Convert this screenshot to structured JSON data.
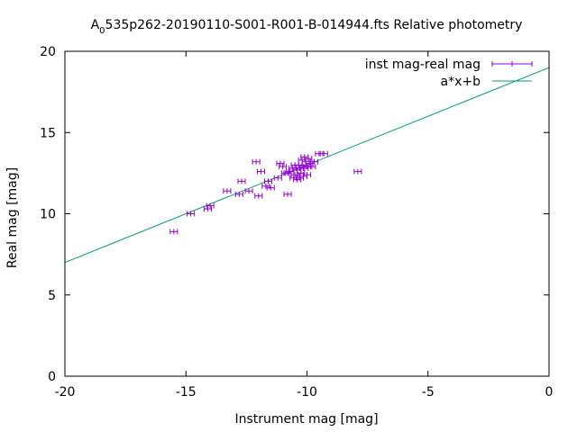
{
  "chart_data": {
    "type": "scatter",
    "title_main": "A",
    "title_sub": "0",
    "title_rest": "535p262-20190110-S001-R001-B-014944.fts Relative photometry",
    "xlabel": "Instrument mag [mag]",
    "ylabel": "Real mag [mag]",
    "xlim": [
      -20,
      0
    ],
    "ylim": [
      0,
      20
    ],
    "xticks": [
      -20,
      -15,
      -10,
      -5,
      0
    ],
    "xtick_labels": [
      "-20",
      "-15",
      "-10",
      "-5",
      "0"
    ],
    "yticks": [
      0,
      5,
      10,
      15,
      20
    ],
    "ytick_labels": [
      "0",
      "5",
      "10",
      "15",
      "20"
    ],
    "grid": false,
    "legend_position": "top-right",
    "series": [
      {
        "name": "inst mag-real mag",
        "color": "#9400d3",
        "style": "errorbars",
        "xerr": 0.15,
        "points": [
          [
            -15.5,
            8.9
          ],
          [
            -14.8,
            10.0
          ],
          [
            -14.1,
            10.3
          ],
          [
            -14.0,
            10.5
          ],
          [
            -13.3,
            11.4
          ],
          [
            -12.8,
            11.2
          ],
          [
            -12.7,
            12.0
          ],
          [
            -12.4,
            11.4
          ],
          [
            -12.1,
            13.2
          ],
          [
            -12.0,
            11.1
          ],
          [
            -11.9,
            12.6
          ],
          [
            -11.7,
            11.7
          ],
          [
            -11.6,
            12.0
          ],
          [
            -11.5,
            11.6
          ],
          [
            -11.2,
            12.2
          ],
          [
            -11.1,
            13.1
          ],
          [
            -11.0,
            12.9
          ],
          [
            -10.9,
            12.5
          ],
          [
            -10.8,
            11.2
          ],
          [
            -10.8,
            12.5
          ],
          [
            -10.7,
            12.6
          ],
          [
            -10.6,
            12.8
          ],
          [
            -10.55,
            12.2
          ],
          [
            -10.5,
            13.0
          ],
          [
            -10.5,
            12.4
          ],
          [
            -10.4,
            12.1
          ],
          [
            -10.4,
            12.7
          ],
          [
            -10.35,
            13.0
          ],
          [
            -10.3,
            12.8
          ],
          [
            -10.3,
            12.2
          ],
          [
            -10.25,
            12.5
          ],
          [
            -10.2,
            13.3
          ],
          [
            -10.2,
            13.0
          ],
          [
            -10.15,
            12.3
          ],
          [
            -10.1,
            13.5
          ],
          [
            -10.1,
            12.8
          ],
          [
            -10.05,
            13.2
          ],
          [
            -10.0,
            12.9
          ],
          [
            -10.0,
            12.4
          ],
          [
            -9.95,
            13.4
          ],
          [
            -9.9,
            13.1
          ],
          [
            -9.8,
            12.9
          ],
          [
            -9.7,
            13.2
          ],
          [
            -9.5,
            13.7
          ],
          [
            -9.3,
            13.7
          ],
          [
            -7.9,
            12.6
          ]
        ]
      },
      {
        "name": "a*x+b",
        "color": "#009e73",
        "style": "line",
        "a": 0.6,
        "b": 19.0
      }
    ]
  }
}
